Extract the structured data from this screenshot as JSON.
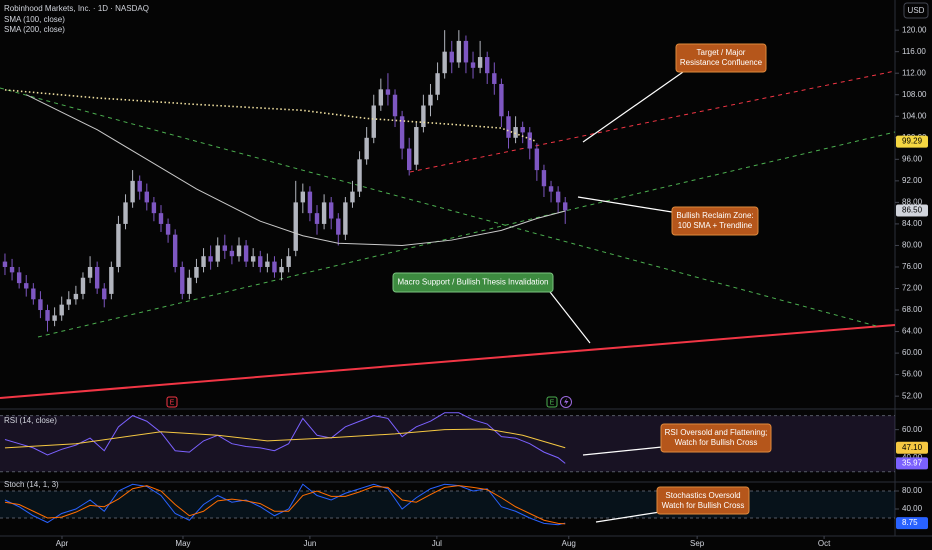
{
  "header": {
    "title": "Robinhood Markets, Inc. · 1D · NASDAQ",
    "currency": "USD"
  },
  "events": [
    "E",
    "E"
  ],
  "annotations": {
    "target": [
      "Target / Major",
      "Resistance Confluence"
    ],
    "reclaim": [
      "Bullish Reclaim Zone:",
      "100 SMA + Trendline"
    ],
    "support": [
      "Macro Support / Bullish Thesis Invalidation"
    ],
    "rsi": [
      "RSI Oversold and Flattening;",
      "Watch for Bullish Cross"
    ],
    "stoch": [
      "Stochastics Oversold",
      "Watch for Bullish Cross"
    ]
  },
  "chart_data": [
    {
      "type": "candlestick",
      "xlim": [
        -0.7,
        125.5
      ],
      "xticks": [
        {
          "value": 8.04,
          "label": "Apr"
        },
        {
          "value": 25.1,
          "label": "May"
        },
        {
          "value": 43,
          "label": "Jun"
        },
        {
          "value": 60.9,
          "label": "Jul"
        },
        {
          "value": 79.5,
          "label": "Aug"
        },
        {
          "value": 97.6,
          "label": "Sep"
        },
        {
          "value": 115.5,
          "label": "Oct"
        }
      ],
      "ylim": [
        49.8,
        125.6
      ],
      "yticks": [
        {
          "value": 52,
          "label": "52.00"
        },
        {
          "value": 56,
          "label": "56.00"
        },
        {
          "value": 60,
          "label": "60.00"
        },
        {
          "value": 64,
          "label": "64.00"
        },
        {
          "value": 68,
          "label": "68.00"
        },
        {
          "value": 72,
          "label": "72.00"
        },
        {
          "value": 76,
          "label": "76.00"
        },
        {
          "value": 80,
          "label": "80.00"
        },
        {
          "value": 84,
          "label": "84.00"
        },
        {
          "value": 88,
          "label": "88.00"
        },
        {
          "value": 92,
          "label": "92.00"
        },
        {
          "value": 96,
          "label": "96.00"
        },
        {
          "value": 100,
          "label": "100.00"
        },
        {
          "value": 104,
          "label": "104.00"
        },
        {
          "value": 108,
          "label": "108.00"
        },
        {
          "value": 112,
          "label": "112.00"
        },
        {
          "value": 116,
          "label": "116.00"
        },
        {
          "value": 120,
          "label": "120.00"
        }
      ],
      "up_color": "#b2b5be",
      "down_color": "#7e57c2",
      "open": [
        77,
        76,
        75,
        73,
        72,
        70,
        68,
        66,
        67,
        69,
        70,
        71,
        74,
        76,
        72,
        71,
        76,
        84,
        88,
        92,
        90,
        88,
        86,
        84,
        82,
        76,
        71,
        74,
        76,
        78,
        77,
        80,
        79,
        78,
        80,
        77,
        78,
        76,
        77,
        75,
        76,
        79,
        88,
        90,
        86,
        84,
        88,
        85,
        82,
        88,
        90,
        96,
        100,
        106,
        109,
        108,
        104,
        98,
        95,
        102,
        106,
        108,
        112,
        116,
        114,
        118,
        114,
        113,
        115,
        112,
        110,
        104,
        100,
        102,
        101,
        98,
        94,
        91,
        90,
        88
      ],
      "high": [
        78.5,
        77.5,
        76,
        74.5,
        73,
        71.5,
        69,
        68.5,
        70.5,
        71.5,
        72.5,
        75,
        78,
        77,
        73,
        77,
        85.5,
        89.5,
        94,
        93,
        91.5,
        89,
        87.5,
        85,
        83,
        77,
        75.5,
        77.5,
        79.5,
        80,
        81.5,
        82,
        80,
        81.5,
        81,
        79.5,
        79,
        78.5,
        78,
        77.5,
        79.5,
        92,
        91.5,
        91,
        87.5,
        89.5,
        89,
        86,
        89,
        92,
        97.5,
        102,
        108,
        111,
        112,
        109,
        105,
        100,
        103,
        108,
        110,
        114,
        120,
        118,
        120,
        119,
        116,
        118,
        116,
        114,
        111,
        105,
        104,
        103,
        102,
        99,
        95,
        92,
        91,
        89
      ],
      "low": [
        74.5,
        73.5,
        72,
        70.5,
        69,
        66.5,
        64,
        65,
        66,
        68,
        69,
        70,
        73,
        71,
        68.5,
        70,
        75,
        83,
        87,
        88.5,
        86.5,
        84.5,
        82.5,
        80.5,
        75,
        70,
        70,
        73,
        75,
        75.5,
        76,
        77.5,
        76.5,
        77,
        76,
        76,
        75,
        75,
        74,
        73.5,
        75,
        78,
        86,
        84.5,
        82,
        83,
        83,
        80,
        81,
        87,
        89,
        95,
        99,
        105,
        106,
        102,
        96,
        93,
        94,
        101,
        104,
        107,
        111,
        112,
        113,
        112,
        111,
        112,
        110,
        108,
        102,
        98,
        99,
        99,
        96,
        92,
        89,
        88,
        86,
        84
      ],
      "close": [
        76,
        75,
        73,
        72,
        70,
        68,
        66,
        67,
        69,
        70,
        71,
        74,
        76,
        72,
        70,
        76,
        84,
        88,
        92,
        90,
        88,
        86,
        84,
        82,
        76,
        71,
        74,
        76,
        78,
        77,
        80,
        79,
        78,
        80,
        77,
        78,
        76,
        77,
        75,
        76,
        78,
        88,
        90,
        86,
        84,
        88,
        85,
        82,
        88,
        90,
        96,
        100,
        106,
        109,
        108,
        104,
        98,
        94,
        102,
        106,
        108,
        112,
        116,
        114,
        118,
        114,
        113,
        115,
        112,
        110,
        104,
        100,
        102,
        101,
        98,
        94,
        91,
        90,
        88,
        86.5
      ],
      "series": [
        {
          "name": "SMA (100, close)",
          "color": "#c9c9c9",
          "line_style": "solid",
          "x": [
            3,
            13,
            20,
            27,
            36,
            42,
            47,
            56,
            63,
            70,
            75,
            79
          ],
          "values": [
            108,
            101.5,
            96,
            90.5,
            84.5,
            81.8,
            80.4,
            80,
            81,
            82.8,
            85,
            86.4
          ]
        },
        {
          "name": "SMA (200, close)",
          "color": "#f0e0a0",
          "line_style": "dotted",
          "x": [
            0,
            13,
            27,
            42,
            51,
            63,
            70,
            75
          ],
          "values": [
            108.9,
            107.4,
            106.2,
            105.1,
            103.6,
            102.5,
            101.8,
            99.29
          ]
        }
      ],
      "price_tags": [
        {
          "value": 99.29,
          "label": "99.29",
          "color": "#f5d742",
          "text_color": "#000000"
        },
        {
          "value": 86.5,
          "label": "86.50",
          "color": "#d1d4dc",
          "text_color": "#000000"
        }
      ]
    },
    {
      "type": "line",
      "title": "RSI (14, close)",
      "ylim": [
        22,
        74
      ],
      "yticks": [
        {
          "value": 60,
          "label": "60.00"
        },
        {
          "value": 40,
          "label": "40.00"
        }
      ],
      "band": [
        30,
        70
      ],
      "band_color": "rgba(126,87,194,0.16)",
      "series": [
        {
          "color": "#7b61ff",
          "x": [
            0,
            2,
            4,
            6,
            8,
            10,
            12,
            14,
            16,
            18,
            20,
            22,
            24,
            26,
            28,
            30,
            32,
            34,
            36,
            38,
            40,
            42,
            44,
            46,
            48,
            50,
            52,
            54,
            56,
            58,
            60,
            62,
            64,
            66,
            68,
            70,
            72,
            74,
            76,
            78,
            79
          ],
          "values": [
            53,
            50,
            47,
            42,
            46,
            49,
            54,
            45,
            62,
            70,
            66,
            58,
            45,
            44,
            52,
            56,
            50,
            48,
            47,
            45,
            50,
            68,
            56,
            54,
            62,
            66,
            70,
            68,
            55,
            62,
            66,
            72,
            72,
            67,
            64,
            55,
            54,
            50,
            44,
            40,
            35.97
          ]
        },
        {
          "color": "#f5c842",
          "x": [
            0,
            10,
            22,
            30,
            37,
            45,
            55,
            62,
            68,
            73,
            79
          ],
          "values": [
            47,
            50,
            58.5,
            56,
            52,
            54,
            57,
            60,
            60.5,
            56,
            47.1
          ]
        }
      ],
      "price_tags": [
        {
          "value": 47.1,
          "label": "47.10",
          "color": "#f5c842",
          "text_color": "#000000"
        },
        {
          "value": 35.97,
          "label": "35.97",
          "color": "#7b61ff",
          "text_color": "#ffffff"
        }
      ]
    },
    {
      "type": "line",
      "title": "Stoch (14, 1, 3)",
      "ylim": [
        -20,
        100
      ],
      "yticks": [
        {
          "value": 80,
          "label": "80.00"
        },
        {
          "value": 40,
          "label": "40.00"
        }
      ],
      "band": [
        20,
        80
      ],
      "band_color": "rgba(33,150,243,0.09)",
      "series": [
        {
          "color": "#2962ff",
          "x": [
            0,
            2,
            4,
            6,
            8,
            10,
            12,
            14,
            16,
            18,
            20,
            22,
            24,
            26,
            28,
            30,
            32,
            34,
            36,
            38,
            40,
            42,
            44,
            46,
            48,
            50,
            52,
            54,
            56,
            58,
            60,
            62,
            64,
            66,
            68,
            70,
            72,
            74,
            76,
            78,
            79
          ],
          "values": [
            60,
            45,
            25,
            10,
            30,
            40,
            60,
            35,
            80,
            95,
            90,
            70,
            30,
            15,
            50,
            70,
            55,
            60,
            45,
            25,
            40,
            95,
            70,
            60,
            75,
            85,
            95,
            85,
            40,
            65,
            85,
            95,
            92,
            80,
            85,
            45,
            35,
            20,
            8,
            5,
            8.75
          ]
        },
        {
          "color": "#ff6d00",
          "x": [
            0,
            2,
            4,
            6,
            8,
            10,
            12,
            14,
            16,
            18,
            20,
            22,
            24,
            26,
            28,
            30,
            32,
            34,
            36,
            38,
            40,
            42,
            44,
            46,
            48,
            50,
            52,
            54,
            56,
            58,
            60,
            62,
            64,
            66,
            68,
            70,
            72,
            74,
            76,
            78,
            79
          ],
          "values": [
            55,
            50,
            35,
            20,
            22,
            33,
            48,
            45,
            62,
            85,
            92,
            80,
            50,
            25,
            35,
            58,
            62,
            58,
            52,
            35,
            35,
            70,
            80,
            68,
            68,
            78,
            90,
            88,
            60,
            55,
            72,
            88,
            92,
            88,
            83,
            65,
            45,
            30,
            15,
            8,
            7
          ]
        }
      ],
      "price_tags": [
        {
          "value": 8.75,
          "label": "8.75",
          "color": "#2962ff",
          "text_color": "#ffffff"
        }
      ]
    }
  ]
}
